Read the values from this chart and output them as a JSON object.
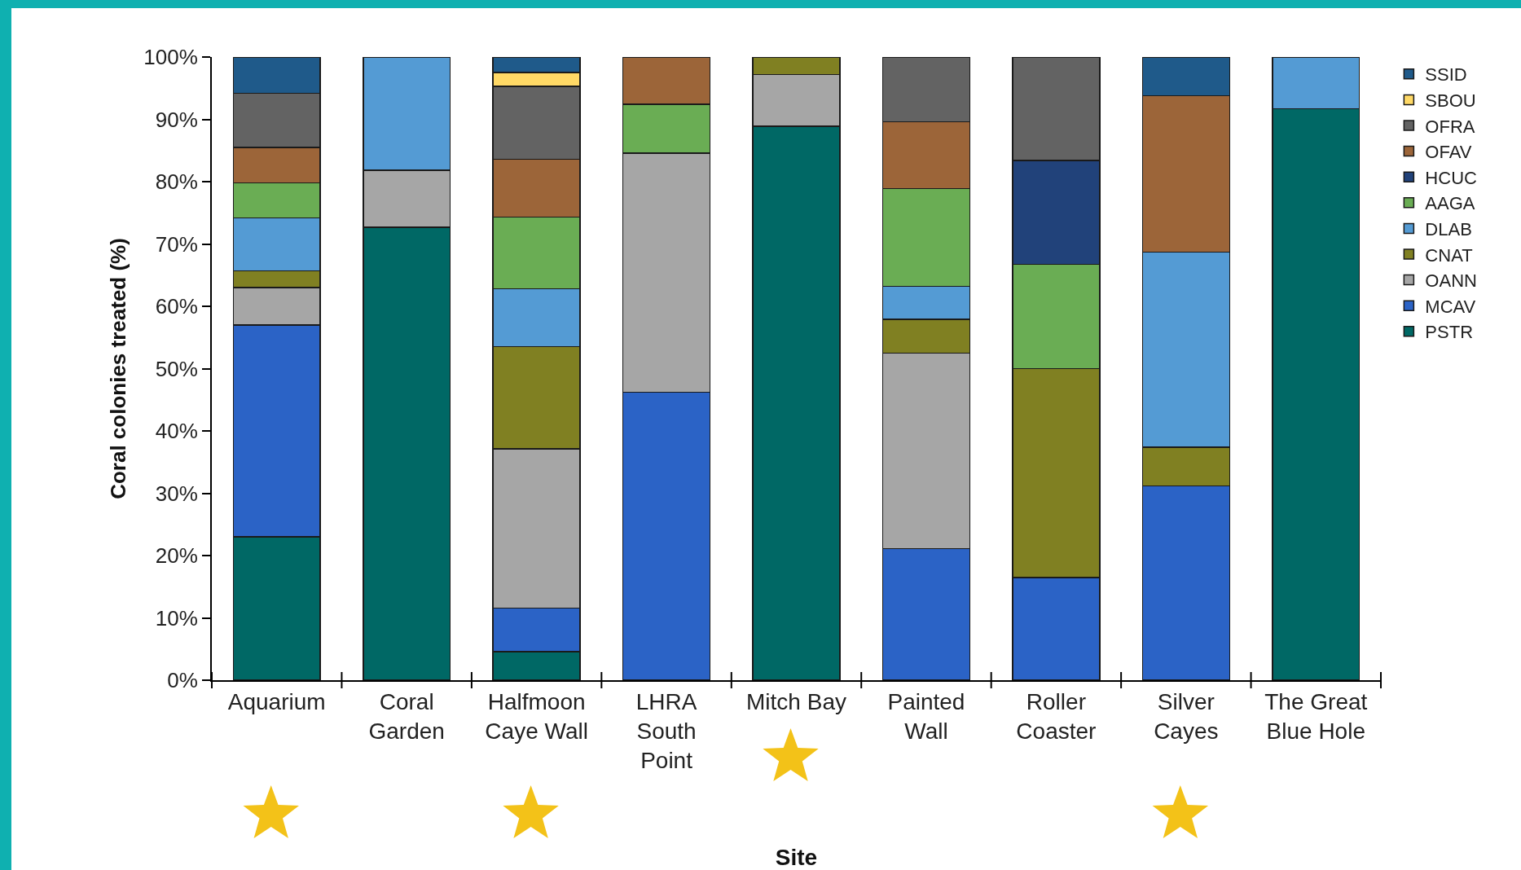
{
  "chart_data": {
    "type": "bar",
    "stacked": true,
    "xlabel": "Site",
    "ylabel": "Coral colonies treated (%)",
    "categories": [
      "Aquarium",
      "Coral Garden",
      "Halfmoon Caye Wall",
      "LHRA South Point",
      "Mitch Bay",
      "Painted Wall",
      "Roller Coaster",
      "Silver Cayes",
      "The Great Blue Hole"
    ],
    "series": [
      {
        "name": "PSTR",
        "color": "#006865",
        "values": [
          23,
          72.7,
          4.6,
          null,
          88.9,
          null,
          null,
          null,
          91.7
        ]
      },
      {
        "name": "MCAV",
        "color": "#2b63c6",
        "values": [
          34,
          null,
          7,
          46.2,
          null,
          21.1,
          16.5,
          31.2,
          null
        ]
      },
      {
        "name": "OANN",
        "color": "#a6a6a6",
        "values": [
          6,
          9.1,
          25.5,
          38.4,
          8.3,
          31.4,
          null,
          null,
          null
        ]
      },
      {
        "name": "CNAT",
        "color": "#808022",
        "values": [
          2.7,
          null,
          16.4,
          null,
          2.8,
          5.4,
          33.5,
          6.2,
          null
        ]
      },
      {
        "name": "DLAB",
        "color": "#549bd4",
        "values": [
          8.5,
          18.2,
          9.3,
          null,
          null,
          5.3,
          null,
          31.3,
          8.3
        ]
      },
      {
        "name": "AAGA",
        "color": "#6aad54",
        "values": [
          5.6,
          null,
          11.5,
          7.8,
          null,
          15.7,
          16.7,
          null,
          null
        ]
      },
      {
        "name": "HCUC",
        "color": "#21427a",
        "values": [
          null,
          null,
          null,
          null,
          null,
          null,
          16.7,
          null,
          null
        ]
      },
      {
        "name": "OFAV",
        "color": "#9c6539",
        "values": [
          5.7,
          null,
          9.3,
          7.6,
          null,
          10.7,
          null,
          25.1,
          null
        ]
      },
      {
        "name": "OFRA",
        "color": "#636363",
        "values": [
          8.7,
          null,
          11.7,
          null,
          null,
          10.4,
          16.6,
          null,
          null
        ]
      },
      {
        "name": "SBOU",
        "color": "#ffd966",
        "values": [
          null,
          null,
          2.2,
          null,
          null,
          null,
          null,
          null,
          null
        ]
      },
      {
        "name": "SSID",
        "color": "#1f5a8a",
        "values": [
          5.8,
          null,
          2.5,
          null,
          null,
          null,
          null,
          6.2,
          null
        ]
      }
    ],
    "ylim": [
      0,
      100
    ],
    "yticks": [
      {
        "value": 0,
        "label": "0%"
      },
      {
        "value": 10,
        "label": "10%"
      },
      {
        "value": 20,
        "label": "20%"
      },
      {
        "value": 30,
        "label": "30%"
      },
      {
        "value": 40,
        "label": "40%"
      },
      {
        "value": 50,
        "label": "50%"
      },
      {
        "value": 60,
        "label": "60%"
      },
      {
        "value": 70,
        "label": "70%"
      },
      {
        "value": 80,
        "label": "80%"
      },
      {
        "value": 90,
        "label": "90%"
      },
      {
        "value": 100,
        "label": "100%"
      }
    ],
    "grid": false,
    "legend": "right"
  }
}
